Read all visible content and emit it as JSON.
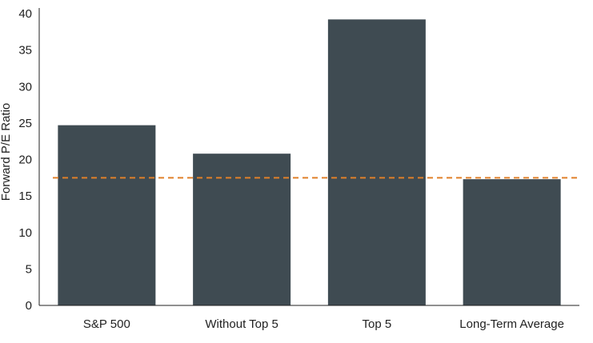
{
  "chart_data": {
    "type": "bar",
    "title": "",
    "xlabel": "",
    "ylabel": "Forward P/E Ratio",
    "categories": [
      "S&P 500",
      "Without Top 5",
      "Top 5",
      "Long-Term Average"
    ],
    "values": [
      24.7,
      20.8,
      39.2,
      17.3
    ],
    "ylim": [
      0,
      40
    ],
    "yticks": [
      "0",
      "5",
      "10",
      "15",
      "20",
      "25",
      "30",
      "35",
      "40"
    ],
    "reference_line": {
      "value": 17.5,
      "style": "dashed"
    },
    "grid": false,
    "legend": "none",
    "colors": {
      "bar": "#3f4b52",
      "reference_line": "#e0802a",
      "axis": "#222222"
    }
  }
}
